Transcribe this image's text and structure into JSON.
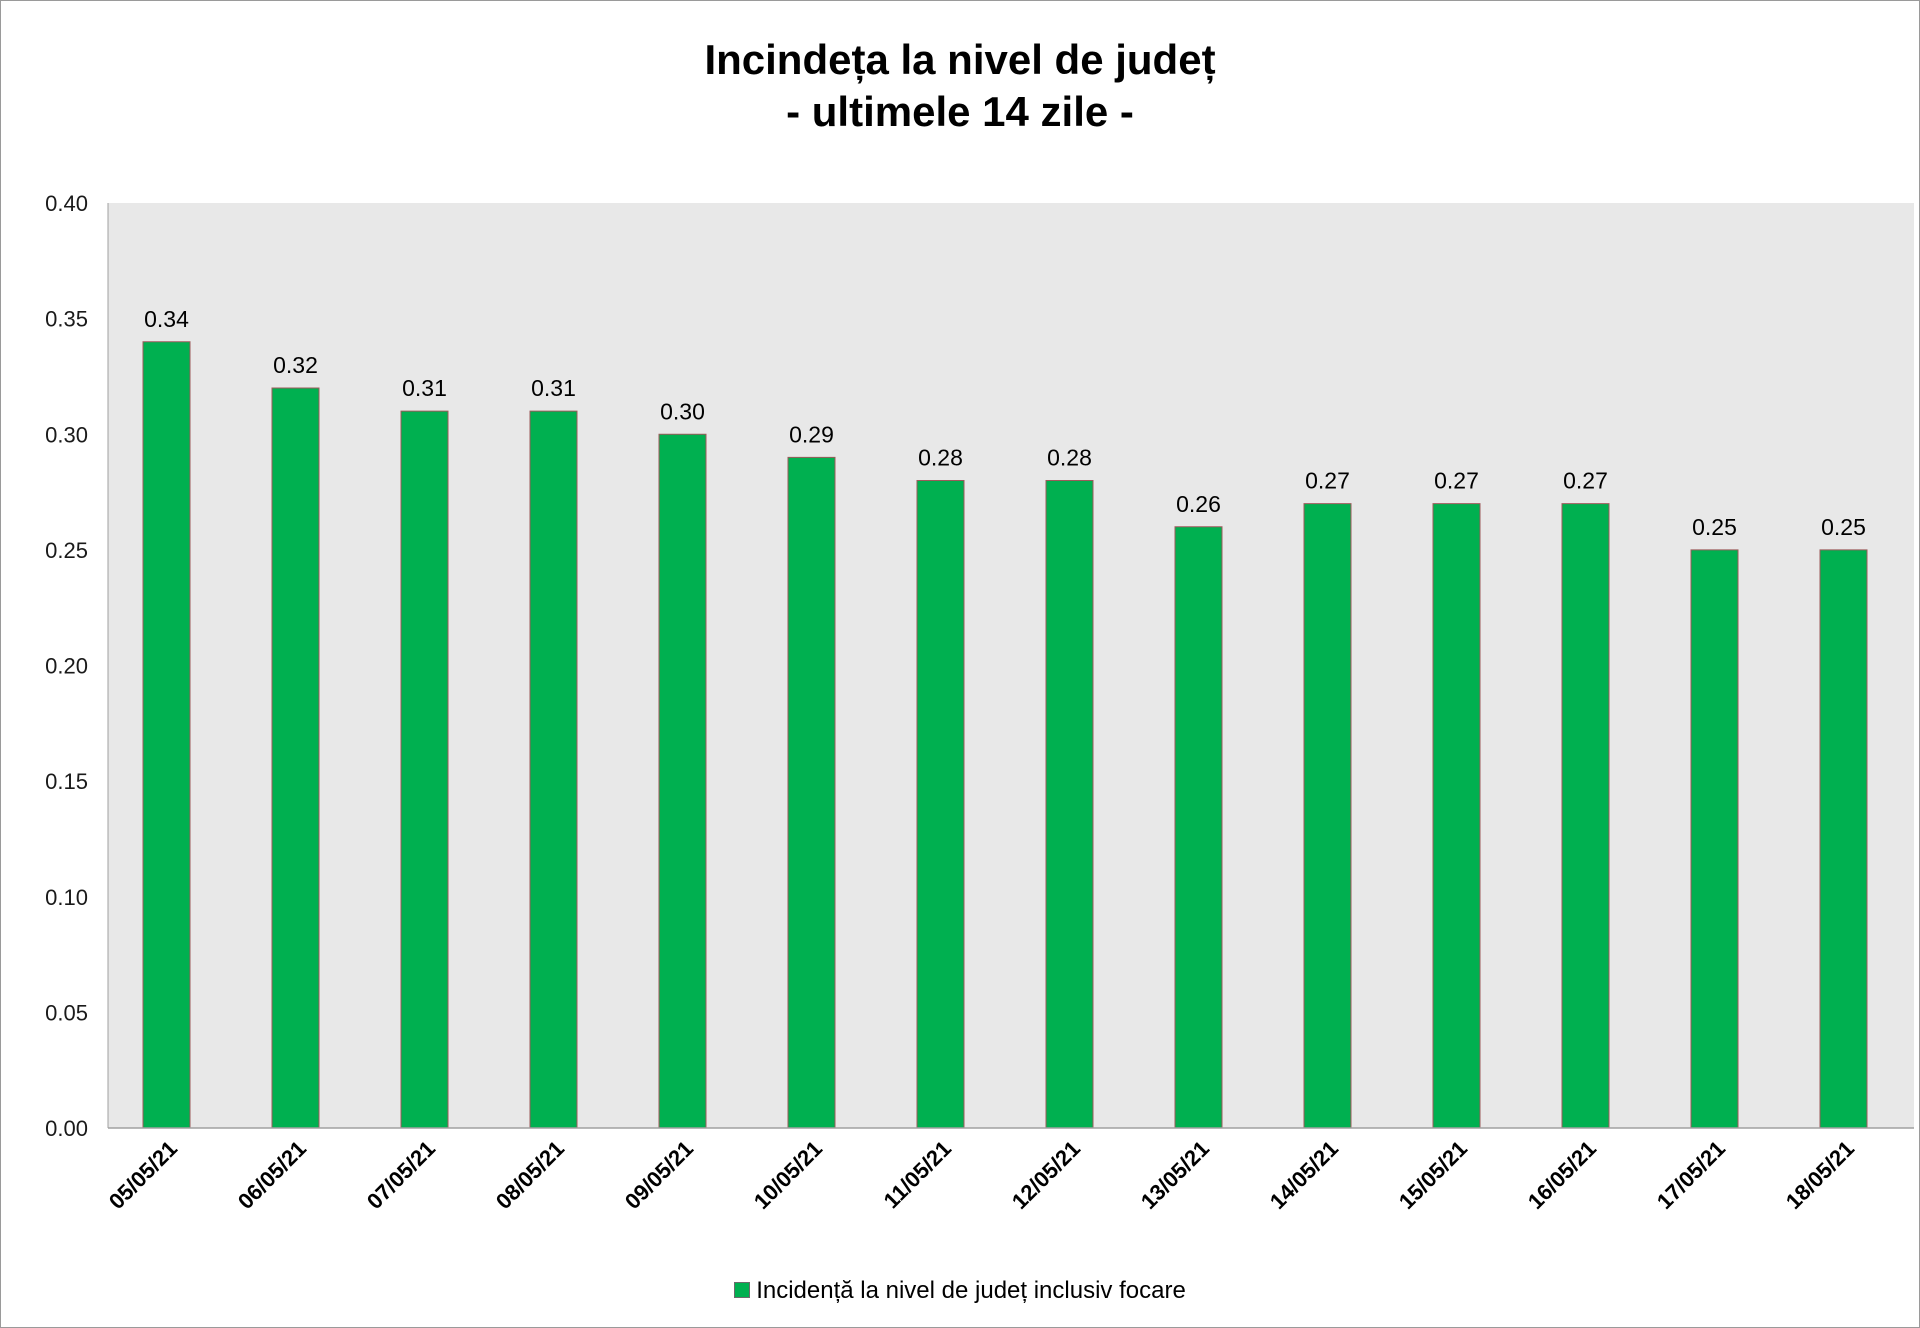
{
  "chart_data": {
    "type": "bar",
    "title": [
      "Incindeța la nivel de județ",
      "- ultimele 14 zile -"
    ],
    "xlabel": "",
    "ylabel": "",
    "categories": [
      "05/05/21",
      "06/05/21",
      "07/05/21",
      "08/05/21",
      "09/05/21",
      "10/05/21",
      "11/05/21",
      "12/05/21",
      "13/05/21",
      "14/05/21",
      "15/05/21",
      "16/05/21",
      "17/05/21",
      "18/05/21"
    ],
    "series": [
      {
        "name": "Incidență la nivel de județ inclusiv focare",
        "values": [
          0.34,
          0.32,
          0.31,
          0.31,
          0.3,
          0.29,
          0.28,
          0.28,
          0.26,
          0.27,
          0.27,
          0.27,
          0.25,
          0.25
        ],
        "color": "#00b050"
      }
    ],
    "data_labels": [
      "0.34",
      "0.32",
      "0.31",
      "0.31",
      "0.30",
      "0.29",
      "0.28",
      "0.28",
      "0.26",
      "0.27",
      "0.27",
      "0.27",
      "0.25",
      "0.25"
    ],
    "ylim": [
      0,
      0.4
    ],
    "yticks": [
      "0.00",
      "0.05",
      "0.10",
      "0.15",
      "0.20",
      "0.25",
      "0.30",
      "0.35",
      "0.40"
    ],
    "grid": false,
    "plot_background": "#e8e8e8",
    "legend_position": "bottom-center"
  }
}
